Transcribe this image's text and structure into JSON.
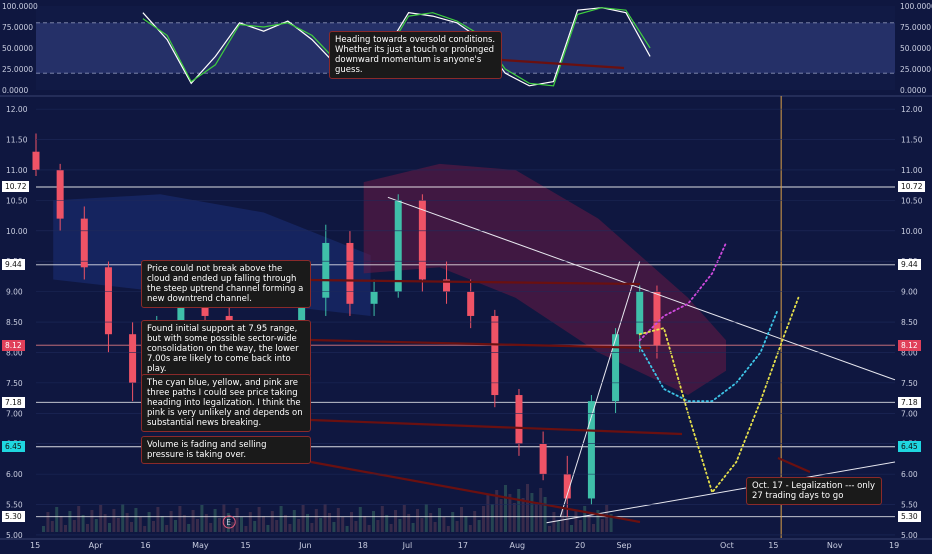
{
  "chart_data": [
    {
      "type": "line",
      "panel": "oscillator",
      "ylim": [
        0,
        100
      ],
      "y_ticks": [
        "100.0000",
        "75.0000",
        "50.0000",
        "25.0000",
        "0.0000"
      ],
      "band": [
        20,
        80
      ],
      "series": [
        {
          "color": "#ffffff",
          "x": [
            "2018-04-15",
            "2018-04-22",
            "2018-04-29",
            "2018-05-06",
            "2018-05-13",
            "2018-05-20",
            "2018-05-27",
            "2018-06-03",
            "2018-06-10",
            "2018-06-17",
            "2018-06-24",
            "2018-07-01",
            "2018-07-08",
            "2018-07-15",
            "2018-07-22",
            "2018-07-29",
            "2018-08-05",
            "2018-08-12",
            "2018-08-19",
            "2018-08-26",
            "2018-09-02",
            "2018-09-09"
          ],
          "values": [
            92,
            60,
            8,
            40,
            80,
            70,
            82,
            60,
            30,
            22,
            45,
            92,
            88,
            80,
            60,
            20,
            5,
            10,
            95,
            98,
            92,
            40
          ]
        },
        {
          "color": "#3fcf3f",
          "x": [
            "2018-04-15",
            "2018-04-22",
            "2018-04-29",
            "2018-05-06",
            "2018-05-13",
            "2018-05-20",
            "2018-05-27",
            "2018-06-03",
            "2018-06-10",
            "2018-06-17",
            "2018-06-24",
            "2018-07-01",
            "2018-07-08",
            "2018-07-15",
            "2018-07-22",
            "2018-07-29",
            "2018-08-05",
            "2018-08-12",
            "2018-08-19",
            "2018-08-26",
            "2018-09-02",
            "2018-09-09"
          ],
          "values": [
            85,
            65,
            10,
            30,
            78,
            75,
            80,
            65,
            35,
            18,
            40,
            88,
            92,
            82,
            65,
            25,
            8,
            5,
            90,
            98,
            95,
            50
          ]
        }
      ]
    },
    {
      "type": "candlestick",
      "panel": "price",
      "ylim": [
        4.95,
        12.15
      ],
      "y_ticks": [
        5.0,
        5.5,
        6.0,
        6.5,
        7.0,
        7.5,
        8.0,
        8.5,
        9.0,
        9.5,
        10.0,
        10.5,
        11.0,
        11.5,
        12.0
      ],
      "x_ticks": [
        "15",
        "Apr",
        "16",
        "May",
        "15",
        "Jun",
        "18",
        "Jul",
        "17",
        "Aug",
        "20",
        "Sep",
        "Oct",
        "15",
        "Nov",
        "19"
      ],
      "x": [
        "2018-03-15",
        "2018-03-22",
        "2018-03-29",
        "2018-04-05",
        "2018-04-12",
        "2018-04-19",
        "2018-04-26",
        "2018-05-03",
        "2018-05-10",
        "2018-05-17",
        "2018-05-24",
        "2018-05-31",
        "2018-06-07",
        "2018-06-14",
        "2018-06-21",
        "2018-06-28",
        "2018-07-05",
        "2018-07-12",
        "2018-07-19",
        "2018-07-26",
        "2018-08-02",
        "2018-08-09",
        "2018-08-16",
        "2018-08-23",
        "2018-08-30",
        "2018-09-06",
        "2018-09-11"
      ],
      "candles": [
        {
          "o": 11.3,
          "h": 11.6,
          "l": 10.9,
          "c": 11.0
        },
        {
          "o": 11.0,
          "h": 11.1,
          "l": 10.0,
          "c": 10.2
        },
        {
          "o": 10.2,
          "h": 10.4,
          "l": 9.2,
          "c": 9.4
        },
        {
          "o": 9.4,
          "h": 9.5,
          "l": 8.0,
          "c": 8.3
        },
        {
          "o": 8.3,
          "h": 8.5,
          "l": 7.2,
          "c": 7.5
        },
        {
          "o": 7.5,
          "h": 8.6,
          "l": 7.4,
          "c": 8.4
        },
        {
          "o": 8.4,
          "h": 9.2,
          "l": 8.2,
          "c": 9.0
        },
        {
          "o": 9.0,
          "h": 9.4,
          "l": 8.4,
          "c": 8.6
        },
        {
          "o": 8.6,
          "h": 8.8,
          "l": 7.9,
          "c": 8.1
        },
        {
          "o": 8.1,
          "h": 8.4,
          "l": 7.5,
          "c": 7.7
        },
        {
          "o": 7.7,
          "h": 8.3,
          "l": 7.5,
          "c": 8.2
        },
        {
          "o": 8.2,
          "h": 9.0,
          "l": 8.0,
          "c": 8.9
        },
        {
          "o": 8.9,
          "h": 10.1,
          "l": 8.6,
          "c": 9.8
        },
        {
          "o": 9.8,
          "h": 10.0,
          "l": 8.6,
          "c": 8.8
        },
        {
          "o": 8.8,
          "h": 9.2,
          "l": 8.6,
          "c": 9.0
        },
        {
          "o": 9.0,
          "h": 10.6,
          "l": 8.9,
          "c": 10.5
        },
        {
          "o": 10.5,
          "h": 10.6,
          "l": 9.0,
          "c": 9.2
        },
        {
          "o": 9.2,
          "h": 9.5,
          "l": 8.8,
          "c": 9.0
        },
        {
          "o": 9.0,
          "h": 9.2,
          "l": 8.4,
          "c": 8.6
        },
        {
          "o": 8.6,
          "h": 8.7,
          "l": 7.1,
          "c": 7.3
        },
        {
          "o": 7.3,
          "h": 7.4,
          "l": 6.3,
          "c": 6.5
        },
        {
          "o": 6.5,
          "h": 6.7,
          "l": 5.9,
          "c": 6.0
        },
        {
          "o": 6.0,
          "h": 6.3,
          "l": 5.3,
          "c": 5.6
        },
        {
          "o": 5.6,
          "h": 7.3,
          "l": 5.5,
          "c": 7.2
        },
        {
          "o": 7.2,
          "h": 8.4,
          "l": 7.0,
          "c": 8.3
        },
        {
          "o": 8.3,
          "h": 9.1,
          "l": 8.0,
          "c": 9.0
        },
        {
          "o": 9.0,
          "h": 9.1,
          "l": 7.9,
          "c": 8.12
        }
      ],
      "horizontal_levels": [
        {
          "value": 10.72,
          "label": "10.72"
        },
        {
          "value": 9.44,
          "label": "9.44"
        },
        {
          "value": 8.12,
          "label": "8.12"
        },
        {
          "value": 7.18,
          "label": "7.18"
        },
        {
          "value": 6.45,
          "label": "6.45"
        },
        {
          "value": 5.3,
          "label": "5.30"
        }
      ],
      "event_marker": {
        "label": "E",
        "x": "2018-05-10"
      },
      "vertical_marker": {
        "x": "2018-10-17"
      },
      "projected_paths": [
        {
          "color": "#d04adf",
          "x": [
            "2018-09-06",
            "2018-09-13",
            "2018-09-20",
            "2018-09-27",
            "2018-10-01"
          ],
          "values": [
            8.2,
            8.6,
            8.8,
            9.3,
            9.8
          ]
        },
        {
          "color": "#3ec6e8",
          "x": [
            "2018-09-06",
            "2018-09-13",
            "2018-09-20",
            "2018-09-27",
            "2018-10-04",
            "2018-10-11",
            "2018-10-16"
          ],
          "values": [
            8.1,
            7.4,
            7.2,
            7.2,
            7.5,
            8.0,
            8.7
          ]
        },
        {
          "color": "#e6e04a",
          "x": [
            "2018-09-06",
            "2018-09-13",
            "2018-09-20",
            "2018-09-27",
            "2018-10-04",
            "2018-10-11",
            "2018-10-18",
            "2018-10-22"
          ],
          "values": [
            8.3,
            8.4,
            7.0,
            5.7,
            6.2,
            7.2,
            8.3,
            8.9
          ]
        }
      ]
    }
  ],
  "annotations": {
    "oscillator_note": "Heading towards oversold conditions. Whether its just a touch or prolonged downward momentum is anyone's guess.",
    "cloud_note": "Price could not break above the cloud and ended up falling through the steep uptrend channel forming a new downtrend channel.",
    "support_note": "Found initial support at 7.95 range, but with some possible sector-wide consolidation on the way, the lower 7.00s are likely to come back into play.",
    "paths_note": "The cyan blue, yellow, and pink are three paths I could see price taking heading into legalization. I think the pink is very unlikely and depends on substantial news breaking.",
    "volume_note": "Volume is fading and selling pressure is taking over.",
    "legalization_note": "Oct. 17 - Legalization --- only 27 trading days to go"
  },
  "colors": {
    "background": "#0f1740",
    "up_candle": "#3fbfa9",
    "down_candle": "#ef5366",
    "cloud_bear": "#6a1a44",
    "cloud_bull": "#1c2f78"
  }
}
